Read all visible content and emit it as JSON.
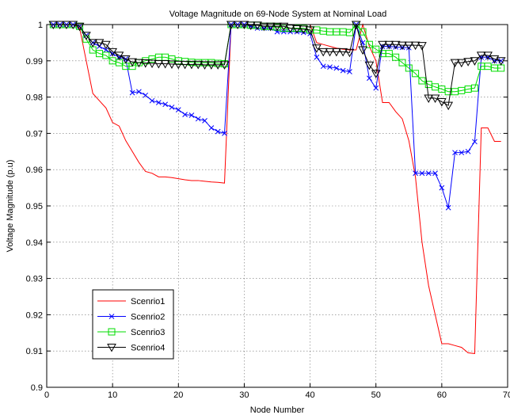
{
  "chart_data": {
    "type": "line",
    "title": "Voltage Magnitude on 69-Node System at Nominal Load",
    "xlabel": "Node Number",
    "ylabel": "Voltage Magnitude (p.u)",
    "xlim": [
      0,
      70
    ],
    "ylim": [
      0.9,
      1
    ],
    "xticks": [
      0,
      10,
      20,
      30,
      40,
      50,
      60,
      70
    ],
    "yticks": [
      0.9,
      0.91,
      0.92,
      0.93,
      0.94,
      0.95,
      0.96,
      0.97,
      0.98,
      0.99,
      1
    ],
    "grid": true,
    "legend_position": "lower-left",
    "x": [
      1,
      2,
      3,
      4,
      5,
      6,
      7,
      8,
      9,
      10,
      11,
      12,
      13,
      14,
      15,
      16,
      17,
      18,
      19,
      20,
      21,
      22,
      23,
      24,
      25,
      26,
      27,
      28,
      29,
      30,
      31,
      32,
      33,
      34,
      35,
      36,
      37,
      38,
      39,
      40,
      41,
      42,
      43,
      44,
      45,
      46,
      47,
      48,
      49,
      50,
      51,
      52,
      53,
      54,
      55,
      56,
      57,
      58,
      59,
      60,
      61,
      62,
      63,
      64,
      65,
      66,
      67,
      68,
      69
    ],
    "series": [
      {
        "name": "Scenrio1",
        "color": "#ff0000",
        "marker": "none",
        "values": [
          1.0,
          1.0,
          1.0,
          1.0,
          0.999,
          0.99,
          0.981,
          0.979,
          0.977,
          0.973,
          0.972,
          0.968,
          0.965,
          0.962,
          0.9595,
          0.959,
          0.958,
          0.958,
          0.9578,
          0.9575,
          0.9572,
          0.957,
          0.957,
          0.9568,
          0.9566,
          0.9565,
          0.9563,
          1.0,
          1.0,
          1.0,
          1.0,
          1.0,
          1.0,
          1.0,
          1.0,
          1.0,
          1.0,
          1.0,
          1.0,
          1.0,
          0.995,
          0.9945,
          0.994,
          0.9935,
          0.9932,
          0.993,
          0.993,
          1.0,
          0.994,
          0.99,
          0.9785,
          0.9785,
          0.976,
          0.974,
          0.968,
          0.958,
          0.94,
          0.928,
          0.92,
          0.912,
          0.912,
          0.9115,
          0.911,
          0.9095,
          0.9093,
          0.9715,
          0.9715,
          0.9678,
          0.9678
        ]
      },
      {
        "name": "Scenrio2",
        "color": "#0000ff",
        "marker": "x",
        "values": [
          1.0,
          1.0,
          1.0,
          1.0,
          0.9995,
          0.997,
          0.995,
          0.994,
          0.993,
          0.992,
          0.991,
          0.9905,
          0.9812,
          0.9815,
          0.9805,
          0.979,
          0.9785,
          0.978,
          0.9772,
          0.9765,
          0.9752,
          0.975,
          0.974,
          0.9735,
          0.9715,
          0.9705,
          0.97,
          1.0,
          1.0,
          1.0,
          0.9995,
          0.999,
          0.999,
          0.999,
          0.998,
          0.998,
          0.998,
          0.998,
          0.9978,
          0.9975,
          0.991,
          0.9885,
          0.9883,
          0.988,
          0.9873,
          0.987,
          1.0,
          0.995,
          0.9852,
          0.9825,
          0.994,
          0.994,
          0.9938,
          0.9937,
          0.9936,
          0.959,
          0.959,
          0.959,
          0.959,
          0.955,
          0.9495,
          0.9647,
          0.9647,
          0.965,
          0.9677,
          0.991,
          0.991,
          0.99,
          0.99
        ]
      },
      {
        "name": "Scenrio3",
        "color": "#00dd00",
        "marker": "square",
        "values": [
          1.0,
          1.0,
          1.0,
          1.0,
          0.9995,
          0.996,
          0.993,
          0.992,
          0.9915,
          0.99,
          0.9895,
          0.9885,
          0.9885,
          0.9895,
          0.99,
          0.9905,
          0.991,
          0.991,
          0.9905,
          0.99,
          0.9898,
          0.9896,
          0.9895,
          0.9895,
          0.9895,
          0.9893,
          0.9892,
          1.0,
          1.0,
          1.0,
          0.9998,
          0.9998,
          0.9995,
          0.9995,
          0.9993,
          0.999,
          0.999,
          0.999,
          0.999,
          0.9985,
          0.9985,
          0.9982,
          0.998,
          0.998,
          0.998,
          0.9978,
          1.0,
          0.998,
          0.9945,
          0.9932,
          0.992,
          0.992,
          0.991,
          0.9895,
          0.988,
          0.9865,
          0.9845,
          0.9835,
          0.9828,
          0.9822,
          0.9815,
          0.9815,
          0.9818,
          0.9822,
          0.9825,
          0.9885,
          0.9885,
          0.988,
          0.988
        ]
      },
      {
        "name": "Scenrio4",
        "color": "#000000",
        "marker": "triangle-down",
        "values": [
          1.0,
          1.0,
          1.0,
          1.0,
          0.9995,
          0.997,
          0.995,
          0.995,
          0.9945,
          0.9925,
          0.9915,
          0.9905,
          0.9897,
          0.9895,
          0.9894,
          0.9893,
          0.9892,
          0.9892,
          0.9891,
          0.989,
          0.989,
          0.989,
          0.989,
          0.9889,
          0.9889,
          0.9889,
          0.9889,
          1.0,
          1.0,
          1.0,
          0.9998,
          0.9998,
          0.9995,
          0.9995,
          0.9995,
          0.9995,
          0.999,
          0.9988,
          0.9987,
          0.9985,
          0.9935,
          0.9925,
          0.9925,
          0.9925,
          0.9925,
          0.9923,
          1.0,
          0.993,
          0.9888,
          0.9865,
          0.9945,
          0.9945,
          0.9945,
          0.9943,
          0.9943,
          0.9943,
          0.9942,
          0.9797,
          0.9797,
          0.9787,
          0.9777,
          0.9895,
          0.9895,
          0.9898,
          0.99,
          0.9915,
          0.9915,
          0.9905,
          0.99
        ]
      }
    ]
  }
}
